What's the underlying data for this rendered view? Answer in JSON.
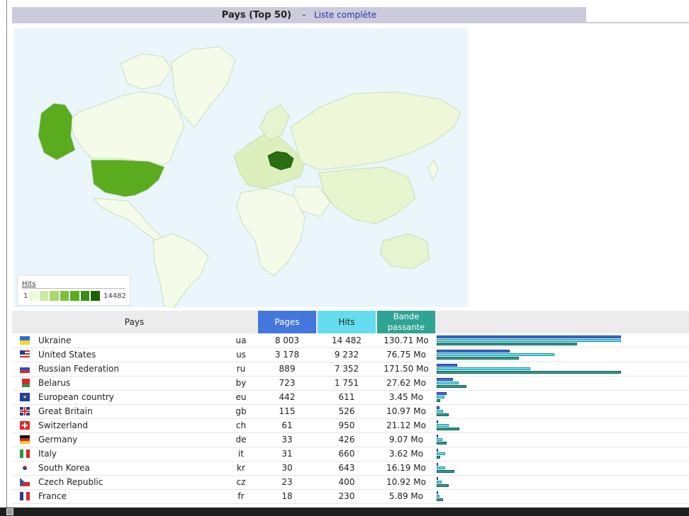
{
  "header": {
    "title": "Pays (Top 50)",
    "separator": "-",
    "full_list_link": "Liste complète"
  },
  "map": {
    "ocean_color": "#eaf6fc",
    "land_color": "#f5fbe9",
    "legend": {
      "title": "Hits",
      "min": "1",
      "max": "14482"
    },
    "legend_ramp": [
      "#eef9d9",
      "#cdeaa2",
      "#a8d96a",
      "#7cc13a",
      "#5aab1e",
      "#3a8c12",
      "#1f6308"
    ],
    "highlight_colors": {
      "ukraine": "#2a6e11",
      "united_states": "#5aab1e",
      "russia": "#eef8d9",
      "europe": "#dcefbd",
      "asia": "#e8f6d0"
    }
  },
  "table": {
    "headers": {
      "country": "Pays",
      "pages": "Pages",
      "hits": "Hits",
      "bandwidth_line1": "Bande",
      "bandwidth_line2": "passante"
    },
    "colors": {
      "pages": "#4477dd",
      "hits": "#66ddee",
      "bandwidth": "#2ea593"
    },
    "rows": [
      {
        "name": "Ukraine",
        "code": "ua",
        "pages": "8 003",
        "hits": "14 482",
        "bandwidth": "130.71 Mo",
        "flag": "flag-ukraine",
        "p": 8003,
        "h": 14482,
        "b": 130.71
      },
      {
        "name": "United States",
        "code": "us",
        "pages": "3 178",
        "hits": "9 232",
        "bandwidth": "76.75 Mo",
        "flag": "flag-usa",
        "p": 3178,
        "h": 9232,
        "b": 76.75
      },
      {
        "name": "Russian Federation",
        "code": "ru",
        "pages": "889",
        "hits": "7 352",
        "bandwidth": "171.50 Mo",
        "flag": "flag-russia",
        "p": 889,
        "h": 7352,
        "b": 171.5
      },
      {
        "name": "Belarus",
        "code": "by",
        "pages": "723",
        "hits": "1 751",
        "bandwidth": "27.62 Mo",
        "flag": "flag-belarus",
        "p": 723,
        "h": 1751,
        "b": 27.62
      },
      {
        "name": "European country",
        "code": "eu",
        "pages": "442",
        "hits": "611",
        "bandwidth": "3.45 Mo",
        "flag": "flag-eu",
        "p": 442,
        "h": 611,
        "b": 3.45
      },
      {
        "name": "Great Britain",
        "code": "gb",
        "pages": "115",
        "hits": "526",
        "bandwidth": "10.97 Mo",
        "flag": "flag-uk",
        "p": 115,
        "h": 526,
        "b": 10.97
      },
      {
        "name": "Switzerland",
        "code": "ch",
        "pages": "61",
        "hits": "950",
        "bandwidth": "21.12 Mo",
        "flag": "flag-switzerland",
        "p": 61,
        "h": 950,
        "b": 21.12
      },
      {
        "name": "Germany",
        "code": "de",
        "pages": "33",
        "hits": "426",
        "bandwidth": "9.07 Mo",
        "flag": "flag-germany",
        "p": 33,
        "h": 426,
        "b": 9.07
      },
      {
        "name": "Italy",
        "code": "it",
        "pages": "31",
        "hits": "660",
        "bandwidth": "3.62 Mo",
        "flag": "flag-italy",
        "p": 31,
        "h": 660,
        "b": 3.62
      },
      {
        "name": "South Korea",
        "code": "kr",
        "pages": "30",
        "hits": "643",
        "bandwidth": "16.19 Mo",
        "flag": "flag-south-korea",
        "p": 30,
        "h": 643,
        "b": 16.19
      },
      {
        "name": "Czech Republic",
        "code": "cz",
        "pages": "23",
        "hits": "400",
        "bandwidth": "10.92 Mo",
        "flag": "flag-czech",
        "p": 23,
        "h": 400,
        "b": 10.92
      },
      {
        "name": "France",
        "code": "fr",
        "pages": "18",
        "hits": "230",
        "bandwidth": "5.89 Mo",
        "flag": "flag-france",
        "p": 18,
        "h": 230,
        "b": 5.89
      }
    ]
  }
}
